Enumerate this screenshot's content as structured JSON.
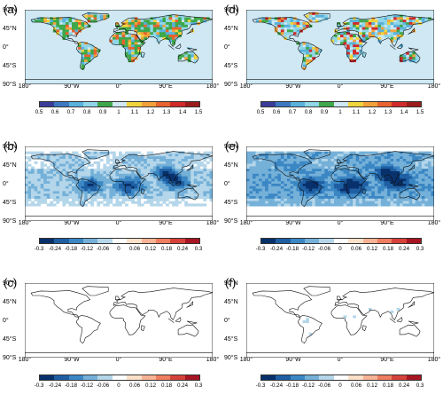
{
  "lat_labels": [
    "90°N",
    "45°N",
    "0°",
    "45°S",
    "90°S"
  ],
  "lon_labels": [
    "180°",
    "90°W",
    "0°",
    "90°E",
    "180°"
  ],
  "panels": [
    {
      "label": "(a)",
      "kind": "ratio",
      "ticks": [
        "0.5",
        "0.6",
        "0.7",
        "0.8",
        "0.9",
        "1",
        "1.1",
        "1.2",
        "1.3",
        "1.4",
        "1.5"
      ]
    },
    {
      "label": "(b)",
      "kind": "diff-strong",
      "ticks": [
        "-0.3",
        "-0.24",
        "-0.18",
        "-0.12",
        "-0.06",
        "0",
        "0.06",
        "0.12",
        "0.18",
        "0.24",
        "0.3"
      ]
    },
    {
      "label": "(c)",
      "kind": "diff-none",
      "ticks": [
        "-0.3",
        "-0.24",
        "-0.18",
        "-0.12",
        "-0.06",
        "0",
        "0.06",
        "0.12",
        "0.18",
        "0.24",
        "0.3"
      ]
    },
    {
      "label": "(d)",
      "kind": "ratio-light",
      "ticks": [
        "0.5",
        "0.6",
        "0.7",
        "0.8",
        "0.9",
        "1",
        "1.1",
        "1.2",
        "1.3",
        "1.4",
        "1.5"
      ]
    },
    {
      "label": "(e)",
      "kind": "diff-stronger",
      "ticks": [
        "-0.3",
        "-0.24",
        "-0.18",
        "-0.12",
        "-0.06",
        "0",
        "0.06",
        "0.12",
        "0.18",
        "0.24",
        "0.3"
      ]
    },
    {
      "label": "(f)",
      "kind": "diff-weak",
      "ticks": [
        "-0.3",
        "-0.24",
        "-0.18",
        "-0.12",
        "-0.06",
        "0",
        "0.06",
        "0.12",
        "0.18",
        "0.24",
        "0.3"
      ]
    }
  ],
  "colors": {
    "ratio": [
      "#3a3d98",
      "#3d78c2",
      "#59b2dc",
      "#8fd6e8",
      "#3ea84a",
      "#cfe8f4",
      "#f2d43c",
      "#f3a13a",
      "#e8632e",
      "#d12a2a",
      "#9c1b1b"
    ],
    "diff": [
      "#08306b",
      "#1e5fa3",
      "#3b87c4",
      "#74b0d8",
      "#b4d6ea",
      "#ffffff",
      "#fde0c8",
      "#f8b394",
      "#ef7d60",
      "#d6423a",
      "#a71422"
    ]
  }
}
